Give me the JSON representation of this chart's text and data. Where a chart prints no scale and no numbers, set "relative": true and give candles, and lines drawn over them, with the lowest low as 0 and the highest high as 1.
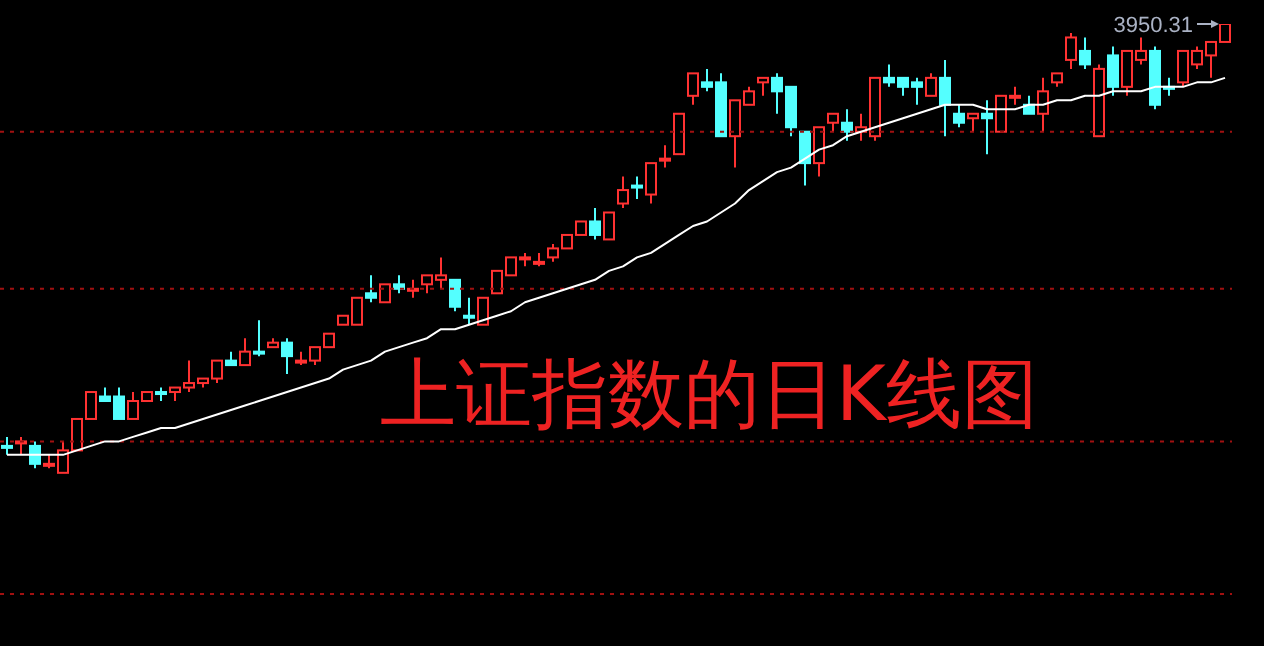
{
  "chart_data": {
    "type": "candlestick",
    "title": "上证指数的日K线图",
    "relative": true,
    "categories": [
      null,
      null,
      null,
      null,
      null,
      null,
      null,
      null,
      null,
      null,
      null,
      null,
      null,
      null,
      null,
      null,
      null,
      null,
      null,
      null,
      null,
      null,
      null,
      null,
      null,
      null,
      null,
      null,
      null,
      null,
      null,
      null,
      null,
      null,
      null,
      null,
      null,
      null,
      null,
      null,
      null,
      null,
      null,
      null,
      null,
      null,
      null,
      null,
      null,
      null,
      null,
      null,
      null,
      null,
      null,
      null,
      null,
      null,
      null,
      null,
      null,
      null,
      null,
      null,
      null,
      null,
      null,
      null,
      null,
      null,
      null,
      null,
      null,
      null,
      null,
      null,
      null,
      null,
      null,
      null,
      null,
      null,
      null,
      null,
      null,
      null,
      null,
      null
    ],
    "ohlc": [
      [
        0.06,
        0.08,
        0.04,
        0.06
      ],
      [
        0.07,
        0.08,
        0.04,
        0.07
      ],
      [
        0.06,
        0.07,
        0.01,
        0.02
      ],
      [
        0.02,
        0.04,
        0.01,
        0.02
      ],
      [
        0,
        0.07,
        0,
        0.05
      ],
      [
        0.05,
        0.12,
        0.05,
        0.12
      ],
      [
        0.12,
        0.18,
        0.12,
        0.18
      ],
      [
        0.17,
        0.19,
        0.16,
        0.16
      ],
      [
        0.17,
        0.19,
        0.12,
        0.12
      ],
      [
        0.12,
        0.18,
        0.12,
        0.16
      ],
      [
        0.16,
        0.18,
        0.16,
        0.18
      ],
      [
        0.18,
        0.19,
        0.16,
        0.18
      ],
      [
        0.18,
        0.19,
        0.16,
        0.19
      ],
      [
        0.19,
        0.25,
        0.18,
        0.2
      ],
      [
        0.2,
        0.21,
        0.19,
        0.21
      ],
      [
        0.21,
        0.25,
        0.2,
        0.25
      ],
      [
        0.25,
        0.27,
        0.24,
        0.24
      ],
      [
        0.24,
        0.3,
        0.24,
        0.27
      ],
      [
        0.27,
        0.34,
        0.26,
        0.27
      ],
      [
        0.28,
        0.3,
        0.28,
        0.29
      ],
      [
        0.29,
        0.3,
        0.22,
        0.26
      ],
      [
        0.25,
        0.27,
        0.24,
        0.25
      ],
      [
        0.25,
        0.28,
        0.24,
        0.28
      ],
      [
        0.28,
        0.31,
        0.28,
        0.31
      ],
      [
        0.33,
        0.35,
        0.33,
        0.35
      ],
      [
        0.33,
        0.39,
        0.33,
        0.39
      ],
      [
        0.4,
        0.44,
        0.38,
        0.39
      ],
      [
        0.38,
        0.42,
        0.38,
        0.42
      ],
      [
        0.42,
        0.44,
        0.4,
        0.41
      ],
      [
        0.41,
        0.43,
        0.39,
        0.41
      ],
      [
        0.42,
        0.44,
        0.4,
        0.44
      ],
      [
        0.43,
        0.48,
        0.41,
        0.44
      ],
      [
        0.43,
        0.43,
        0.36,
        0.37
      ],
      [
        0.35,
        0.39,
        0.33,
        0.35
      ],
      [
        0.33,
        0.39,
        0.33,
        0.39
      ],
      [
        0.4,
        0.45,
        0.4,
        0.45
      ],
      [
        0.44,
        0.48,
        0.44,
        0.48
      ],
      [
        0.48,
        0.49,
        0.46,
        0.48
      ],
      [
        0.47,
        0.49,
        0.46,
        0.47
      ],
      [
        0.48,
        0.51,
        0.47,
        0.5
      ],
      [
        0.5,
        0.53,
        0.5,
        0.53
      ],
      [
        0.53,
        0.56,
        0.53,
        0.56
      ],
      [
        0.56,
        0.59,
        0.52,
        0.53
      ],
      [
        0.52,
        0.58,
        0.52,
        0.58
      ],
      [
        0.6,
        0.66,
        0.59,
        0.63
      ],
      [
        0.64,
        0.66,
        0.61,
        0.64
      ],
      [
        0.62,
        0.69,
        0.6,
        0.69
      ],
      [
        0.7,
        0.73,
        0.68,
        0.7
      ],
      [
        0.71,
        0.8,
        0.71,
        0.8
      ],
      [
        0.84,
        0.89,
        0.82,
        0.89
      ],
      [
        0.87,
        0.9,
        0.85,
        0.86
      ],
      [
        0.87,
        0.89,
        0.75,
        0.75
      ],
      [
        0.75,
        0.83,
        0.68,
        0.83
      ],
      [
        0.82,
        0.86,
        0.82,
        0.85
      ],
      [
        0.87,
        0.88,
        0.84,
        0.88
      ],
      [
        0.88,
        0.89,
        0.8,
        0.85
      ],
      [
        0.86,
        0.86,
        0.75,
        0.77
      ],
      [
        0.76,
        0.76,
        0.64,
        0.69
      ],
      [
        0.69,
        0.77,
        0.66,
        0.77
      ],
      [
        0.78,
        0.8,
        0.76,
        0.8
      ],
      [
        0.78,
        0.81,
        0.74,
        0.76
      ],
      [
        0.76,
        0.8,
        0.74,
        0.77
      ],
      [
        0.75,
        0.88,
        0.74,
        0.88
      ],
      [
        0.88,
        0.91,
        0.86,
        0.87
      ],
      [
        0.88,
        0.88,
        0.84,
        0.86
      ],
      [
        0.87,
        0.88,
        0.82,
        0.86
      ],
      [
        0.84,
        0.89,
        0.84,
        0.88
      ],
      [
        0.88,
        0.92,
        0.75,
        0.82
      ],
      [
        0.8,
        0.82,
        0.77,
        0.78
      ],
      [
        0.79,
        0.8,
        0.76,
        0.8
      ],
      [
        0.8,
        0.83,
        0.71,
        0.79
      ],
      [
        0.76,
        0.84,
        0.76,
        0.84
      ],
      [
        0.84,
        0.86,
        0.82,
        0.84
      ],
      [
        0.82,
        0.84,
        0.8,
        0.8
      ],
      [
        0.8,
        0.88,
        0.76,
        0.85
      ],
      [
        0.87,
        0.89,
        0.86,
        0.89
      ],
      [
        0.92,
        0.98,
        0.9,
        0.97
      ],
      [
        0.94,
        0.97,
        0.9,
        0.91
      ],
      [
        0.75,
        0.91,
        0.75,
        0.9
      ],
      [
        0.93,
        0.95,
        0.84,
        0.86
      ],
      [
        0.86,
        0.94,
        0.84,
        0.94
      ],
      [
        0.92,
        0.97,
        0.91,
        0.94
      ],
      [
        0.94,
        0.95,
        0.81,
        0.82
      ],
      [
        0.86,
        0.88,
        0.84,
        0.86
      ],
      [
        0.87,
        0.94,
        0.86,
        0.94
      ],
      [
        0.91,
        0.95,
        0.9,
        0.94
      ],
      [
        0.93,
        0.96,
        0.88,
        0.96
      ],
      [
        0.96,
        1,
        0.96,
        1
      ]
    ],
    "colors": [
      "#54ffff",
      "#ff3232",
      "#54ffff",
      "#ff3232",
      "#ff3232",
      "#ff3232",
      "#ff3232",
      "#54ffff",
      "#54ffff",
      "#ff3232",
      "#ff3232",
      "#54ffff",
      "#ff3232",
      "#ff3232",
      "#ff3232",
      "#ff3232",
      "#54ffff",
      "#ff3232",
      "#54ffff",
      "#ff3232",
      "#54ffff",
      "#ff3232",
      "#ff3232",
      "#ff3232",
      "#ff3232",
      "#ff3232",
      "#54ffff",
      "#ff3232",
      "#54ffff",
      "#ff3232",
      "#ff3232",
      "#ff3232",
      "#54ffff",
      "#54ffff",
      "#ff3232",
      "#ff3232",
      "#ff3232",
      "#ff3232",
      "#ff3232",
      "#ff3232",
      "#ff3232",
      "#ff3232",
      "#54ffff",
      "#ff3232",
      "#ff3232",
      "#54ffff",
      "#ff3232",
      "#ff3232",
      "#ff3232",
      "#ff3232",
      "#54ffff",
      "#54ffff",
      "#ff3232",
      "#ff3232",
      "#ff3232",
      "#54ffff",
      "#54ffff",
      "#54ffff",
      "#ff3232",
      "#ff3232",
      "#54ffff",
      "#ff3232",
      "#ff3232",
      "#54ffff",
      "#54ffff",
      "#54ffff",
      "#ff3232",
      "#54ffff",
      "#54ffff",
      "#ff3232",
      "#54ffff",
      "#ff3232",
      "#ff3232",
      "#54ffff",
      "#ff3232",
      "#ff3232",
      "#ff3232",
      "#54ffff",
      "#ff3232",
      "#54ffff",
      "#ff3232",
      "#ff3232",
      "#54ffff",
      "#54ffff",
      "#ff3232",
      "#ff3232",
      "#ff3232",
      "#ff3232"
    ],
    "series": [
      {
        "type": "line",
        "color": "#ffffff",
        "values": [
          0.04,
          0.04,
          0.04,
          0.04,
          0.04,
          0.05,
          0.06,
          0.07,
          0.07,
          0.08,
          0.09,
          0.1,
          0.1,
          0.11,
          0.12,
          0.13,
          0.14,
          0.15,
          0.16,
          0.17,
          0.18,
          0.19,
          0.2,
          0.21,
          0.23,
          0.24,
          0.25,
          0.27,
          0.28,
          0.29,
          0.3,
          0.32,
          0.32,
          0.33,
          0.34,
          0.35,
          0.36,
          0.38,
          0.39,
          0.4,
          0.41,
          0.42,
          0.43,
          0.45,
          0.46,
          0.48,
          0.49,
          0.51,
          0.53,
          0.55,
          0.56,
          0.58,
          0.6,
          0.63,
          0.65,
          0.67,
          0.68,
          0.7,
          0.72,
          0.73,
          0.75,
          0.76,
          0.77,
          0.78,
          0.79,
          0.8,
          0.81,
          0.82,
          0.82,
          0.82,
          0.81,
          0.81,
          0.81,
          0.82,
          0.82,
          0.83,
          0.83,
          0.84,
          0.84,
          0.85,
          0.85,
          0.85,
          0.86,
          0.86,
          0.86,
          0.87,
          0.87,
          0.88
        ]
      }
    ],
    "ref_lines": [
      {
        "axis": "y",
        "value": 0.76,
        "color": "#a01010",
        "line_style": "dotted"
      },
      {
        "axis": "y",
        "value": 0.41,
        "color": "#a01010",
        "line_style": "dotted"
      },
      {
        "axis": "y",
        "value": 0.07,
        "color": "#a01010",
        "line_style": "dotted"
      },
      {
        "axis": "y",
        "value": -0.27,
        "color": "#a01010",
        "line_style": "dotted"
      }
    ],
    "annotations": [
      "3950.31"
    ]
  }
}
